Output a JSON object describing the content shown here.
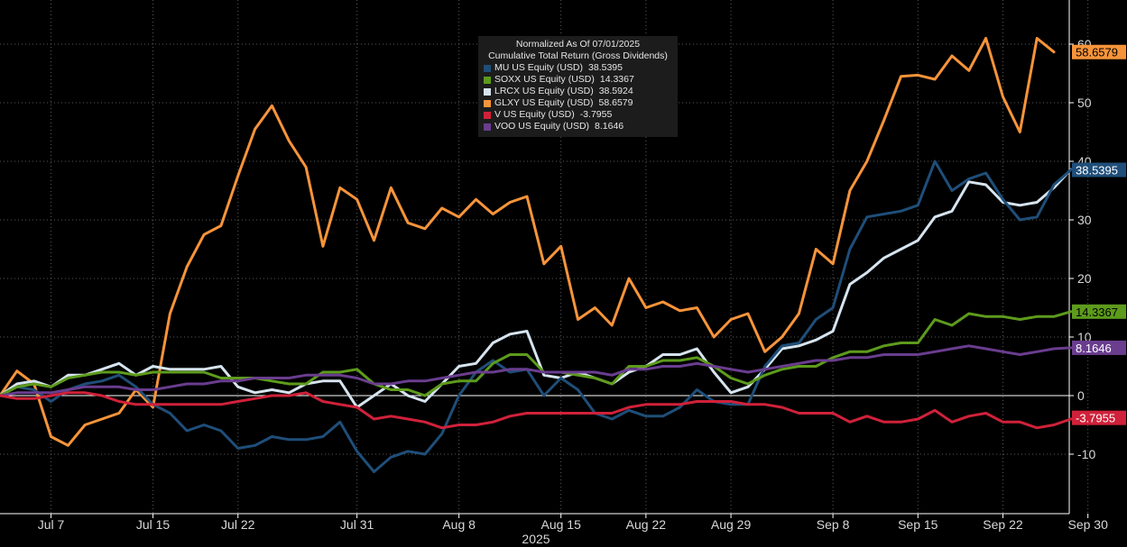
{
  "chart_data": {
    "type": "line",
    "title_line1": "Normalized As Of 07/01/2025",
    "title_line2": "Cumulative Total Return (Gross Dividends)",
    "x_tick_labels": [
      "Jul 7",
      "Jul 15",
      "Jul 22",
      "Jul 31",
      "Aug 8",
      "Aug 15",
      "Aug 22",
      "Aug 29",
      "Sep 8",
      "Sep 15",
      "Sep 22",
      "Sep 30"
    ],
    "x_tick_index": [
      3,
      9,
      14,
      21,
      27,
      33,
      38,
      43,
      49,
      54,
      59,
      64
    ],
    "year_label": "2025",
    "ylim": [
      -20,
      67
    ],
    "y_ticks": [
      -10,
      0,
      10,
      20,
      30,
      40,
      50,
      60
    ],
    "y_tick_labels": [
      "-10",
      "0",
      "10",
      "20",
      "30",
      "40",
      "50",
      "60"
    ],
    "series": [
      {
        "name": "GLXY US Equity (USD)",
        "label_value": "58.6579",
        "color": "#f7943a",
        "text_color": "#000000",
        "values": [
          0,
          4.2,
          2,
          -7,
          -8.5,
          -5,
          -4,
          -3,
          1,
          -2,
          14,
          22,
          27.5,
          29,
          37.5,
          45.5,
          49.5,
          43.5,
          39,
          25.5,
          35.5,
          33.5,
          26.5,
          35.5,
          29.5,
          28.5,
          32,
          30.5,
          33.5,
          31,
          33,
          34,
          22.5,
          25.5,
          13,
          15,
          12,
          20,
          15,
          16,
          14.5,
          15,
          10,
          13,
          14,
          7.5,
          10,
          14,
          25,
          22.5,
          35,
          40,
          47,
          54.5,
          54.7,
          54,
          58,
          55.5,
          61,
          51,
          45,
          61,
          58.6579
        ]
      },
      {
        "name": "LRCX US Equity (USD)",
        "label_value": "38.5924",
        "color": "#d6e4ef",
        "text_color": "#000000",
        "show_box": false,
        "values": [
          0,
          2,
          2.5,
          1.5,
          3.5,
          3.5,
          4.5,
          5.5,
          3.5,
          5,
          4.5,
          4.5,
          4.5,
          5,
          1.5,
          0.5,
          1,
          0.5,
          2,
          2.5,
          2.5,
          -2,
          0,
          2,
          0,
          -1,
          2,
          5,
          5.5,
          9,
          10.5,
          11,
          3.5,
          3,
          4,
          3,
          2,
          4,
          5,
          7,
          7,
          8,
          4,
          0.5,
          1.5,
          4.5,
          8,
          8.5,
          9.5,
          11,
          19,
          21,
          23.5,
          25,
          26.5,
          30.5,
          31.5,
          36.5,
          36,
          33,
          32.5,
          33,
          35.5,
          38.5924
        ]
      },
      {
        "name": "MU US Equity (USD)",
        "label_value": "38.5395",
        "color": "#1f4e79",
        "text_color": "#ffffff",
        "values": [
          0,
          1.5,
          1,
          -1,
          1,
          2,
          2.5,
          3.5,
          1.5,
          -1.5,
          -3,
          -6,
          -5,
          -6,
          -9,
          -8.5,
          -7,
          -7.5,
          -7.5,
          -7,
          -4.5,
          -9.5,
          -13,
          -10.5,
          -9.5,
          -10,
          -6.5,
          0,
          4,
          6,
          4,
          4.5,
          0,
          3,
          1,
          -3,
          -4,
          -2.5,
          -3.5,
          -3.5,
          -2,
          1,
          -1,
          -1.5,
          -1.5,
          5,
          8.5,
          9,
          13,
          15,
          25,
          30.5,
          31,
          31.5,
          32.5,
          40,
          35,
          37,
          38,
          33.5,
          30,
          30.5,
          36,
          38.5395
        ]
      },
      {
        "name": "SOXX US Equity (USD)",
        "label_value": "14.3367",
        "color": "#5d9b1c",
        "text_color": "#000000",
        "values": [
          0,
          1.5,
          2,
          1.5,
          3,
          3.5,
          4,
          4,
          3.5,
          4,
          4,
          4,
          4,
          3,
          3,
          3,
          2.5,
          2,
          2,
          4,
          4,
          4.5,
          2,
          1,
          1,
          0,
          2,
          2.5,
          2.5,
          5.5,
          7,
          7,
          4,
          4,
          3.5,
          3,
          2,
          5,
          5,
          6,
          6,
          6.5,
          5,
          3,
          2,
          3.5,
          4.5,
          5,
          5,
          6.5,
          7.5,
          7.5,
          8.5,
          9,
          9,
          13,
          12,
          14,
          13.5,
          13.5,
          13,
          13.5,
          13.5,
          14.3367
        ]
      },
      {
        "name": "VOO US Equity (USD)",
        "label_value": "8.1646",
        "color": "#6a3d8f",
        "text_color": "#ffffff",
        "values": [
          0,
          0.5,
          0.5,
          0.5,
          1,
          1.5,
          1.5,
          1.5,
          1,
          1,
          1.5,
          2,
          2,
          2.5,
          2.5,
          3,
          3,
          3,
          3.5,
          3.5,
          3.5,
          3,
          2,
          2,
          2.5,
          2.5,
          3,
          3.5,
          4,
          4,
          4.5,
          4.5,
          4,
          4,
          4,
          4,
          3.5,
          4.5,
          4.5,
          5,
          5,
          5.5,
          5,
          4.5,
          4,
          4.5,
          5,
          5.5,
          6,
          6,
          6.5,
          6.5,
          7,
          7,
          7,
          7.5,
          8,
          8.5,
          8,
          7.5,
          7,
          7.5,
          8,
          8.1646
        ]
      },
      {
        "name": "V US Equity (USD)",
        "label_value": "-3.7955",
        "color": "#d0213a",
        "text_color": "#ffffff",
        "values": [
          0,
          -0.5,
          -0.5,
          0,
          0.5,
          0.5,
          0,
          -1,
          -1.5,
          -1.5,
          -1.5,
          -1.5,
          -1.5,
          -1.5,
          -1,
          -0.5,
          0,
          0,
          0.5,
          -1,
          -1.5,
          -2,
          -4,
          -3.5,
          -4,
          -4.5,
          -5.5,
          -5,
          -5,
          -4.5,
          -3.5,
          -3,
          -3,
          -3,
          -3,
          -3,
          -3,
          -2,
          -1.5,
          -1.5,
          -1.5,
          -1,
          -1,
          -1,
          -1.5,
          -1.5,
          -2,
          -3,
          -3,
          -3,
          -4.5,
          -3.5,
          -4.5,
          -4.5,
          -4,
          -2.5,
          -4.5,
          -3.5,
          -3,
          -4.5,
          -4.5,
          -5.5,
          -5,
          -4,
          -3.7955
        ]
      }
    ]
  },
  "legend": {
    "title": "Normalized As Of 07/01/2025",
    "subtitle": "Cumulative Total Return (Gross Dividends)",
    "items": [
      {
        "name": "MU US Equity (USD)",
        "value": "38.5395",
        "color": "#1f4e79"
      },
      {
        "name": "SOXX US Equity (USD)",
        "value": "14.3367",
        "color": "#5d9b1c"
      },
      {
        "name": "LRCX US Equity (USD)",
        "value": "38.5924",
        "color": "#d6e4ef"
      },
      {
        "name": "GLXY US Equity (USD)",
        "value": "58.6579",
        "color": "#f7943a"
      },
      {
        "name": "V US Equity (USD)",
        "value": "-3.7955",
        "color": "#d0213a"
      },
      {
        "name": "VOO US Equity (USD)",
        "value": "8.1646",
        "color": "#6a3d8f"
      }
    ]
  }
}
